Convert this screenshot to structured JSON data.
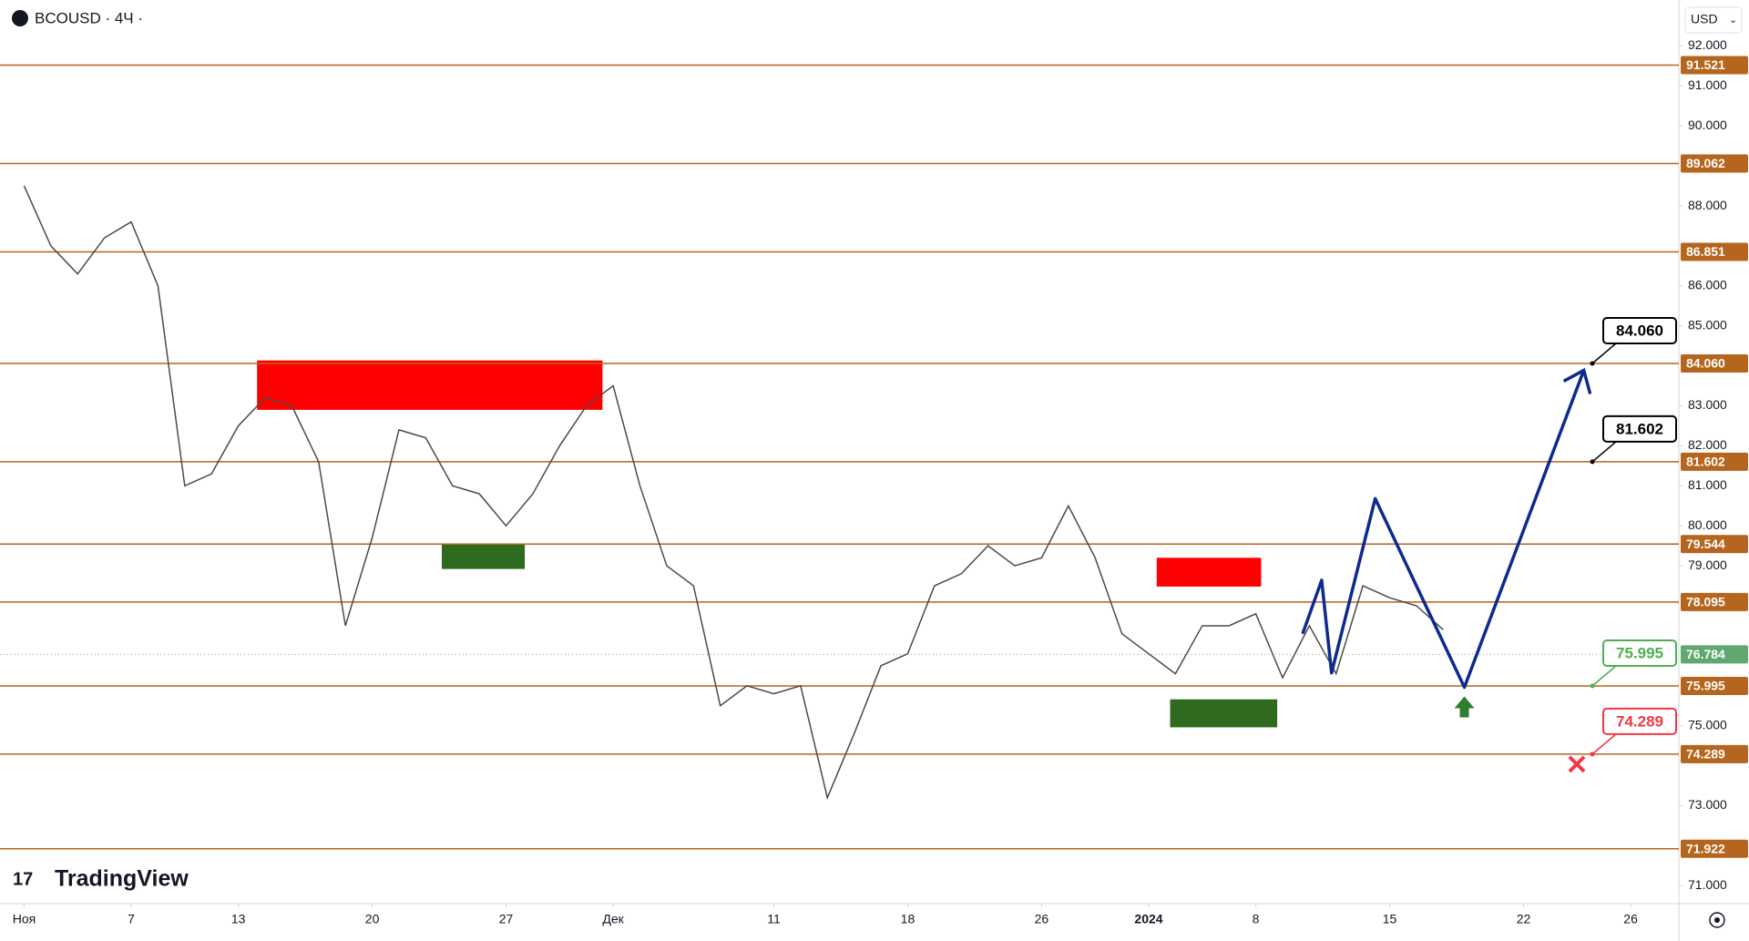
{
  "chart_data": {
    "type": "line",
    "title": "BCOUSD · 4Ч ·",
    "currency": "USD",
    "brand": "TradingView",
    "xlim": [
      -0.9,
      61.8
    ],
    "xticks": [
      {
        "value": 0,
        "label": "Ноя"
      },
      {
        "value": 4,
        "label": "7"
      },
      {
        "value": 8,
        "label": "13"
      },
      {
        "value": 13,
        "label": "20"
      },
      {
        "value": 18,
        "label": "27"
      },
      {
        "value": 22,
        "label": "Дек"
      },
      {
        "value": 28,
        "label": "11"
      },
      {
        "value": 33,
        "label": "18"
      },
      {
        "value": 38,
        "label": "26"
      },
      {
        "value": 42,
        "label": "2024"
      },
      {
        "value": 46,
        "label": "8"
      },
      {
        "value": 51,
        "label": "15"
      },
      {
        "value": 56,
        "label": "22"
      },
      {
        "value": 60,
        "label": "26"
      }
    ],
    "ylim": [
      70.55,
      93.15
    ],
    "yticks": [
      {
        "value": 92,
        "label": "92.000"
      },
      {
        "value": 91,
        "label": "91.000"
      },
      {
        "value": 90,
        "label": "90.000"
      },
      {
        "value": 88,
        "label": "88.000"
      },
      {
        "value": 86,
        "label": "86.000"
      },
      {
        "value": 85,
        "label": "85.000"
      },
      {
        "value": 83,
        "label": "83.000"
      },
      {
        "value": 82,
        "label": "82.000"
      },
      {
        "value": 81,
        "label": "81.000"
      },
      {
        "value": 80,
        "label": "80.000"
      },
      {
        "value": 79,
        "label": "79.000"
      },
      {
        "value": 75,
        "label": "75.000"
      },
      {
        "value": 73,
        "label": "73.000"
      },
      {
        "value": 71,
        "label": "71.000"
      }
    ],
    "levels": [
      {
        "value": 91.521,
        "label": "91.521"
      },
      {
        "value": 89.062,
        "label": "89.062"
      },
      {
        "value": 86.851,
        "label": "86.851"
      },
      {
        "value": 84.06,
        "label": "84.060"
      },
      {
        "value": 81.602,
        "label": "81.602"
      },
      {
        "value": 79.544,
        "label": "79.544"
      },
      {
        "value": 78.095,
        "label": "78.095"
      },
      {
        "value": 75.995,
        "label": "75.995"
      },
      {
        "value": 74.289,
        "label": "74.289"
      },
      {
        "value": 71.922,
        "label": "71.922"
      }
    ],
    "level_color": "#b5651d",
    "last_price": {
      "value": 76.784,
      "label": "76.784",
      "color": "#5fa870"
    },
    "series": [
      {
        "color": "#4a4a4a",
        "x": [
          0,
          1,
          2,
          3,
          4,
          5,
          6,
          7,
          8,
          9,
          10,
          11,
          12,
          13,
          14,
          15,
          16,
          17,
          18,
          19,
          20,
          21,
          22,
          23,
          24,
          25,
          26,
          27,
          28,
          29,
          30,
          31,
          32,
          33,
          34,
          35,
          36,
          37,
          38,
          39,
          40,
          41,
          42,
          43,
          44,
          45,
          46,
          47,
          48,
          49,
          50,
          51,
          52,
          53
        ],
        "values": [
          88.5,
          87.0,
          86.3,
          87.2,
          87.6,
          86.0,
          81.0,
          81.3,
          82.5,
          83.2,
          83.0,
          81.6,
          77.5,
          79.7,
          82.4,
          82.2,
          81.0,
          80.8,
          80.0,
          80.8,
          82.0,
          83.0,
          83.5,
          81.0,
          79.0,
          78.5,
          75.5,
          76.0,
          75.8,
          76.0,
          73.2,
          74.8,
          76.5,
          76.8,
          78.5,
          78.8,
          79.5,
          79.0,
          79.2,
          80.5,
          79.2,
          77.3,
          76.8,
          76.3,
          77.5,
          77.5,
          77.8,
          76.2,
          77.5,
          76.3,
          78.5,
          78.2,
          78.0,
          77.4
        ]
      }
    ],
    "zones": [
      {
        "x": [
          8.7,
          21.6
        ],
        "values": [
          82.9,
          84.136
        ],
        "color": "#ff0000"
      },
      {
        "x": [
          15.6,
          18.7
        ],
        "values": [
          78.92,
          79.56
        ],
        "color": "#2e6b1f"
      },
      {
        "x": [
          42.3,
          46.2
        ],
        "values": [
          78.48,
          79.2
        ],
        "color": "#ff0000"
      },
      {
        "x": [
          42.8,
          46.8
        ],
        "values": [
          74.96,
          75.66
        ],
        "color": "#2e6b1f"
      }
    ],
    "projection": {
      "color": "#0d2a8f",
      "x": [
        47.75,
        48.46,
        48.83,
        50.46,
        53.79,
        58.25
      ],
      "values": [
        77.3,
        78.64,
        76.32,
        80.68,
        75.96,
        83.89
      ]
    },
    "callouts": [
      {
        "value": 84.06,
        "label": "84.060",
        "color": "#000000"
      },
      {
        "value": 81.602,
        "label": "81.602",
        "color": "#000000"
      },
      {
        "value": 75.995,
        "label": "75.995",
        "color": "#4caf50"
      },
      {
        "value": 74.289,
        "label": "74.289",
        "color": "#f23645"
      }
    ]
  }
}
